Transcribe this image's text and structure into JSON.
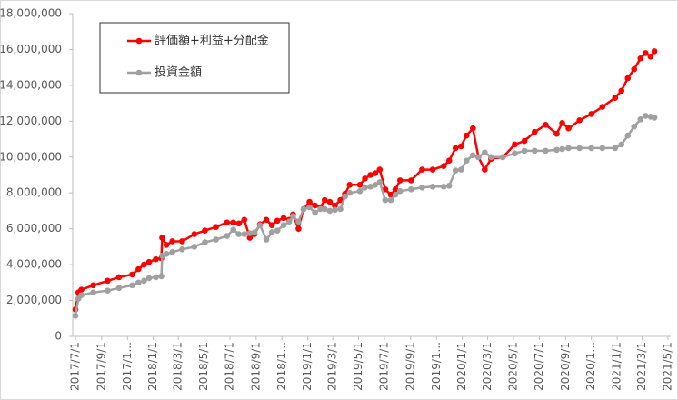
{
  "chart_data": {
    "type": "line",
    "x": [
      "2017/7/1",
      "2017/7/8",
      "2017/7/15",
      "2017/8/12",
      "2017/9/15",
      "2017/10/12",
      "2017/11/12",
      "2017/11/27",
      "2017/12/10",
      "2017/12/22",
      "2018/1/7",
      "2018/1/20",
      "2018/1/22",
      "2018/2/1",
      "2018/2/15",
      "2018/3/10",
      "2018/4/8",
      "2018/5/3",
      "2018/5/29",
      "2018/6/24",
      "2018/7/9",
      "2018/7/22",
      "2018/8/4",
      "2018/8/17",
      "2018/8/28",
      "2018/9/10",
      "2018/9/25",
      "2018/10/8",
      "2018/10/21",
      "2018/11/5",
      "2018/11/18",
      "2018/11/27",
      "2018/12/10",
      "2018/12/22",
      "2019/1/5",
      "2019/1/18",
      "2019/1/31",
      "2019/2/10",
      "2019/2/22",
      "2019/3/6",
      "2019/3/19",
      "2019/3/30",
      "2019/4/10",
      "2019/5/4",
      "2019/5/16",
      "2019/5/29",
      "2019/6/9",
      "2019/6/20",
      "2019/7/3",
      "2019/7/16",
      "2019/7/27",
      "2019/8/7",
      "2019/9/2",
      "2019/9/28",
      "2019/10/23",
      "2019/11/18",
      "2019/12/1",
      "2019/12/16",
      "2019/12/29",
      "2020/1/11",
      "2020/1/26",
      "2020/2/8",
      "2020/2/23",
      "2020/3/9",
      "2020/4/6",
      "2020/5/4",
      "2020/5/27",
      "2020/6/20",
      "2020/7/16",
      "2020/8/11",
      "2020/8/24",
      "2020/9/8",
      "2020/10/4",
      "2020/11/1",
      "2020/11/27",
      "2020/12/27",
      "2021/1/11",
      "2021/1/26",
      "2021/2/10",
      "2021/2/25",
      "2021/3/9",
      "2021/3/21",
      "2021/3/30"
    ],
    "series": [
      {
        "name": "評価額+利益+分配金",
        "color": "#ff0000",
        "values": [
          1500000,
          2450000,
          2600000,
          2850000,
          3100000,
          3300000,
          3450000,
          3750000,
          4000000,
          4150000,
          4300000,
          4350000,
          5500000,
          5100000,
          5300000,
          5300000,
          5700000,
          5900000,
          6100000,
          6350000,
          6350000,
          6300000,
          6500000,
          5500000,
          5700000,
          6250000,
          6500000,
          6200000,
          6450000,
          6600000,
          6500000,
          6800000,
          6000000,
          7100000,
          7500000,
          7300000,
          7200000,
          7600000,
          7500000,
          7300000,
          7600000,
          7950000,
          8450000,
          8450000,
          8800000,
          9000000,
          9100000,
          9300000,
          8200000,
          7900000,
          8200000,
          8700000,
          8700000,
          9300000,
          9300000,
          9500000,
          9800000,
          10500000,
          10600000,
          11200000,
          11600000,
          10000000,
          9300000,
          9900000,
          10000000,
          10700000,
          10900000,
          11400000,
          11800000,
          11300000,
          11900000,
          11600000,
          12050000,
          12400000,
          12800000,
          13300000,
          13700000,
          14400000,
          14900000,
          15500000,
          15800000,
          15600000,
          15900000
        ]
      },
      {
        "name": "投資金額",
        "color": "#a0a0a0",
        "values": [
          1150000,
          2100000,
          2300000,
          2450000,
          2550000,
          2700000,
          2850000,
          3000000,
          3100000,
          3250000,
          3300000,
          3350000,
          4500000,
          4600000,
          4700000,
          4850000,
          5000000,
          5250000,
          5400000,
          5600000,
          5950000,
          5700000,
          5700000,
          5750000,
          5800000,
          6200000,
          5400000,
          5800000,
          5900000,
          6200000,
          6400000,
          6700000,
          6400000,
          7100000,
          7200000,
          6900000,
          7100000,
          7100000,
          7000000,
          7050000,
          7100000,
          7800000,
          8000000,
          8100000,
          8300000,
          8350000,
          8450000,
          8600000,
          7600000,
          7600000,
          7900000,
          8100000,
          8200000,
          8300000,
          8350000,
          8350000,
          8400000,
          9250000,
          9300000,
          9800000,
          10100000,
          10000000,
          10250000,
          10000000,
          10000000,
          10200000,
          10350000,
          10350000,
          10350000,
          10400000,
          10450000,
          10500000,
          10500000,
          10500000,
          10500000,
          10500000,
          10700000,
          11200000,
          11700000,
          12100000,
          12300000,
          12250000,
          12200000
        ]
      }
    ],
    "xlim": [
      "2017/7/1",
      "2021/5/1"
    ],
    "xticks": [
      "2017/7/1",
      "2017/9/1",
      {
        "value": "2017/11/1",
        "label": "2017/1..."
      },
      "2018/1/1",
      "2018/3/1",
      "2018/5/1",
      "2018/7/1",
      "2018/9/1",
      {
        "value": "2018/11/1",
        "label": "2018/1..."
      },
      "2019/1/1",
      "2019/3/1",
      "2019/5/1",
      "2019/7/1",
      "2019/9/1",
      {
        "value": "2019/11/1",
        "label": "2019/1..."
      },
      "2020/1/1",
      "2020/3/1",
      "2020/5/1",
      "2020/7/1",
      "2020/9/1",
      {
        "value": "2020/11/1",
        "label": "2020/1..."
      },
      "2021/1/1",
      "2021/3/1",
      "2021/5/1"
    ],
    "ylim": [
      0,
      18000000
    ],
    "yticks": [
      0,
      {
        "value": 2000000,
        "label": "2,000,000"
      },
      {
        "value": 4000000,
        "label": "4,000,000"
      },
      {
        "value": 6000000,
        "label": "6,000,000"
      },
      {
        "value": 8000000,
        "label": "8,000,000"
      },
      {
        "value": 10000000,
        "label": "10,000,000"
      },
      {
        "value": 12000000,
        "label": "12,000,000"
      },
      {
        "value": 14000000,
        "label": "14,000,000"
      },
      {
        "value": 16000000,
        "label": "16,000,000"
      },
      {
        "value": 18000000,
        "label": "18,000,000"
      }
    ],
    "grid": false,
    "legend": "upper-left"
  }
}
